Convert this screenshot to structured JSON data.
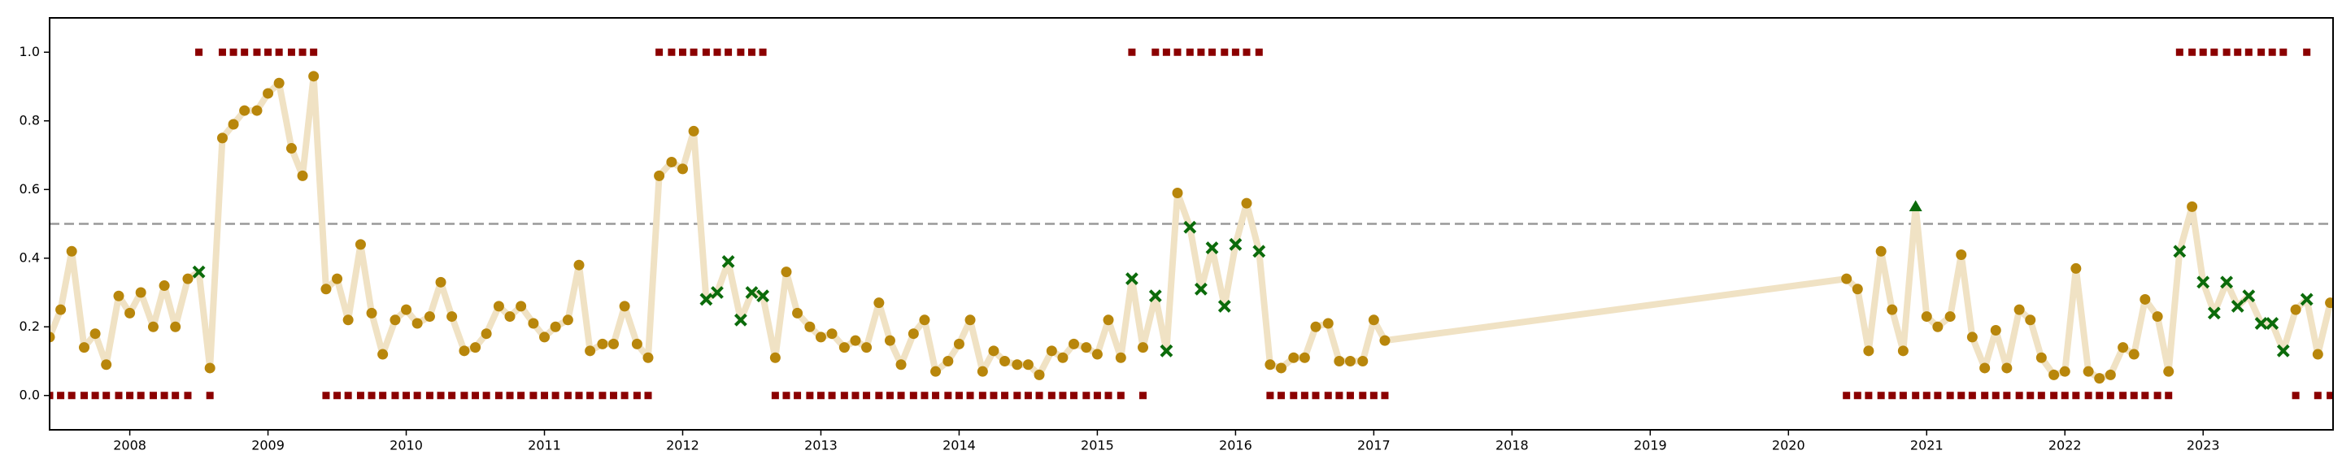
{
  "chart_data": {
    "type": "line",
    "x": [
      2007.42,
      2007.5,
      2007.58,
      2007.67,
      2007.75,
      2007.83,
      2007.92,
      2008,
      2008.08,
      2008.17,
      2008.25,
      2008.33,
      2008.42,
      2008.5,
      2008.58,
      2008.67,
      2008.75,
      2008.83,
      2008.92,
      2009,
      2009.08,
      2009.17,
      2009.25,
      2009.33,
      2009.42,
      2009.5,
      2009.58,
      2009.67,
      2009.75,
      2009.83,
      2009.92,
      2010,
      2010.08,
      2010.17,
      2010.25,
      2010.33,
      2010.42,
      2010.5,
      2010.58,
      2010.67,
      2010.75,
      2010.83,
      2010.92,
      2011,
      2011.08,
      2011.17,
      2011.25,
      2011.33,
      2011.42,
      2011.5,
      2011.58,
      2011.67,
      2011.75,
      2011.83,
      2011.92,
      2012,
      2012.08,
      2012.17,
      2012.25,
      2012.33,
      2012.42,
      2012.5,
      2012.58,
      2012.67,
      2012.75,
      2012.83,
      2012.92,
      2013,
      2013.08,
      2013.17,
      2013.25,
      2013.33,
      2013.42,
      2013.5,
      2013.58,
      2013.67,
      2013.75,
      2013.83,
      2013.92,
      2014,
      2014.08,
      2014.17,
      2014.25,
      2014.33,
      2014.42,
      2014.5,
      2014.58,
      2014.67,
      2014.75,
      2014.83,
      2014.92,
      2015,
      2015.08,
      2015.17,
      2015.25,
      2015.33,
      2015.42,
      2015.5,
      2015.58,
      2015.67,
      2015.75,
      2015.83,
      2015.92,
      2016,
      2016.08,
      2016.17,
      2016.25,
      2016.33,
      2016.42,
      2016.5,
      2016.58,
      2016.67,
      2016.75,
      2016.83,
      2016.92,
      2017,
      2017.08,
      2020.42,
      2020.5,
      2020.58,
      2020.67,
      2020.75,
      2020.83,
      2020.92,
      2021,
      2021.08,
      2021.17,
      2021.25,
      2021.33,
      2021.42,
      2021.5,
      2021.58,
      2021.67,
      2021.75,
      2021.83,
      2021.92,
      2022,
      2022.08,
      2022.17,
      2022.25,
      2022.33,
      2022.42,
      2022.5,
      2022.58,
      2022.67,
      2022.75,
      2022.83,
      2022.92,
      2023,
      2023.08,
      2023.17,
      2023.25,
      2023.33,
      2023.42,
      2023.5,
      2023.58,
      2023.67,
      2023.75,
      2023.83,
      2023.92
    ],
    "series": [
      {
        "color": "#b8860b",
        "line_color": "#f0e2c4",
        "miss_color": "#0b6b0b",
        "values": [
          0.17,
          0.25,
          0.42,
          0.14,
          0.18,
          0.09,
          0.29,
          0.24,
          0.3,
          0.2,
          0.32,
          0.2,
          0.34,
          0.36,
          0.08,
          0.75,
          0.79,
          0.83,
          0.83,
          0.88,
          0.91,
          0.72,
          0.64,
          0.93,
          0.31,
          0.34,
          0.22,
          0.44,
          0.24,
          0.12,
          0.22,
          0.25,
          0.21,
          0.23,
          0.33,
          0.23,
          0.13,
          0.14,
          0.18,
          0.26,
          0.23,
          0.26,
          0.21,
          0.17,
          0.2,
          0.22,
          0.38,
          0.13,
          0.15,
          0.15,
          0.26,
          0.15,
          0.11,
          0.64,
          0.68,
          0.66,
          0.77,
          0.28,
          0.3,
          0.39,
          0.22,
          0.3,
          0.29,
          0.11,
          0.36,
          0.24,
          0.2,
          0.17,
          0.18,
          0.14,
          0.16,
          0.14,
          0.27,
          0.16,
          0.09,
          0.18,
          0.22,
          0.07,
          0.1,
          0.15,
          0.22,
          0.07,
          0.13,
          0.1,
          0.09,
          0.09,
          0.06,
          0.13,
          0.11,
          0.15,
          0.14,
          0.12,
          0.22,
          0.11,
          0.34,
          0.14,
          0.29,
          0.13,
          0.59,
          0.49,
          0.31,
          0.43,
          0.26,
          0.44,
          0.56,
          0.42,
          0.09,
          0.08,
          0.11,
          0.11,
          0.2,
          0.21,
          0.1,
          0.1,
          0.1,
          0.22,
          0.16,
          0.34,
          0.31,
          0.13,
          0.42,
          0.25,
          0.13,
          0.55,
          0.23,
          0.2,
          0.23,
          0.41,
          0.17,
          0.08,
          0.19,
          0.08,
          0.25,
          0.22,
          0.11,
          0.06,
          0.07,
          0.37,
          0.07,
          0.05,
          0.06,
          0.14,
          0.12,
          0.28,
          0.23,
          0.07,
          0.42,
          0.55,
          0.33,
          0.24,
          0.33,
          0.26,
          0.29,
          0.21,
          0.21,
          0.13,
          0.25,
          0.28,
          0.12,
          0.27
        ]
      },
      {
        "color": "#8b0000",
        "values": [
          0,
          0,
          0,
          0,
          0,
          0,
          0,
          0,
          0,
          0,
          0,
          0,
          0,
          1,
          0,
          1,
          1,
          1,
          1,
          1,
          1,
          1,
          1,
          1,
          0,
          0,
          0,
          0,
          0,
          0,
          0,
          0,
          0,
          0,
          0,
          0,
          0,
          0,
          0,
          0,
          0,
          0,
          0,
          0,
          0,
          0,
          0,
          0,
          0,
          0,
          0,
          0,
          0,
          1,
          1,
          1,
          1,
          1,
          1,
          1,
          1,
          1,
          1,
          0,
          0,
          0,
          0,
          0,
          0,
          0,
          0,
          0,
          0,
          0,
          0,
          0,
          0,
          0,
          0,
          0,
          0,
          0,
          0,
          0,
          0,
          0,
          0,
          0,
          0,
          0,
          0,
          0,
          0,
          0,
          1,
          0,
          1,
          1,
          1,
          1,
          1,
          1,
          1,
          1,
          1,
          1,
          0,
          0,
          0,
          0,
          0,
          0,
          0,
          0,
          0,
          0,
          0,
          0,
          0,
          0,
          0,
          0,
          0,
          0,
          0,
          0,
          0,
          0,
          0,
          0,
          0,
          0,
          0,
          0,
          0,
          0,
          0,
          0,
          0,
          0,
          0,
          0,
          0,
          0,
          0,
          0,
          1,
          1,
          1,
          1,
          1,
          1,
          1,
          1,
          1,
          1,
          0,
          1,
          0,
          0
        ]
      }
    ],
    "threshold": 0.5,
    "xlim": [
      2007.42,
      2023.94
    ],
    "xticks": [
      2008,
      2009,
      2010,
      2011,
      2012,
      2013,
      2014,
      2015,
      2016,
      2017,
      2018,
      2019,
      2020,
      2021,
      2022,
      2023
    ],
    "ylim": [
      -0.1,
      1.1
    ],
    "yticks": [
      {
        "value": 0,
        "label": "0.0"
      },
      0.2,
      0.4,
      0.6,
      0.8,
      {
        "value": 1,
        "label": "1.0"
      }
    ]
  }
}
